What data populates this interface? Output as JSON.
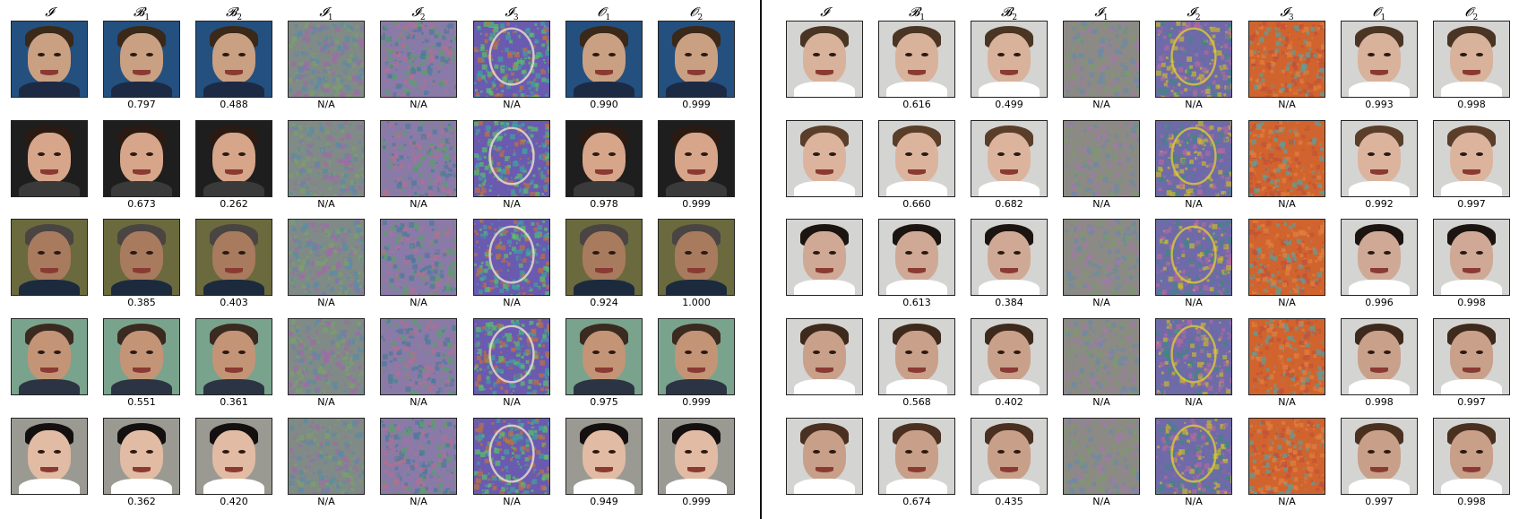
{
  "left_panel": {
    "headers": [
      "𝓘",
      "𝓑",
      "𝓑",
      "𝓘",
      "𝓘",
      "𝓘",
      "𝓞",
      "𝓞"
    ],
    "header_subs": [
      "",
      "1",
      "2",
      "1",
      "2",
      "3",
      "1",
      "2"
    ],
    "rows": [
      {
        "scores": [
          "",
          "0.797",
          "0.488",
          "N/A",
          "N/A",
          "N/A",
          "0.990",
          "0.999"
        ]
      },
      {
        "scores": [
          "",
          "0.673",
          "0.262",
          "N/A",
          "N/A",
          "N/A",
          "0.978",
          "0.999"
        ]
      },
      {
        "scores": [
          "",
          "0.385",
          "0.403",
          "N/A",
          "N/A",
          "N/A",
          "0.924",
          "1.000"
        ]
      },
      {
        "scores": [
          "",
          "0.551",
          "0.361",
          "N/A",
          "N/A",
          "N/A",
          "0.975",
          "0.999"
        ]
      },
      {
        "scores": [
          "",
          "0.362",
          "0.420",
          "N/A",
          "N/A",
          "N/A",
          "0.949",
          "0.999"
        ]
      }
    ]
  },
  "right_panel": {
    "headers": [
      "𝓘",
      "𝓑",
      "𝓑",
      "𝓘",
      "𝓘",
      "𝓘",
      "𝓞",
      "𝓞"
    ],
    "header_subs": [
      "",
      "1",
      "2",
      "1",
      "2",
      "3",
      "1",
      "2"
    ],
    "rows": [
      {
        "scores": [
          "",
          "0.616",
          "0.499",
          "N/A",
          "N/A",
          "N/A",
          "0.993",
          "0.998"
        ]
      },
      {
        "scores": [
          "",
          "0.660",
          "0.682",
          "N/A",
          "N/A",
          "N/A",
          "0.992",
          "0.997"
        ]
      },
      {
        "scores": [
          "",
          "0.613",
          "0.384",
          "N/A",
          "N/A",
          "N/A",
          "0.996",
          "0.998"
        ]
      },
      {
        "scores": [
          "",
          "0.568",
          "0.402",
          "N/A",
          "N/A",
          "N/A",
          "0.998",
          "0.997"
        ]
      },
      {
        "scores": [
          "",
          "0.674",
          "0.435",
          "N/A",
          "N/A",
          "N/A",
          "0.997",
          "0.998"
        ]
      }
    ]
  },
  "colors": {
    "left_bg_a": "#1d3f6a",
    "left_bg_b": "#4b6a3a",
    "right_bg": "#d8d8d8",
    "skin": "#d2a483",
    "noise_a": "#7c9a6a",
    "noise_b": "#9a5ea0",
    "noise_c": "#d1642e"
  }
}
